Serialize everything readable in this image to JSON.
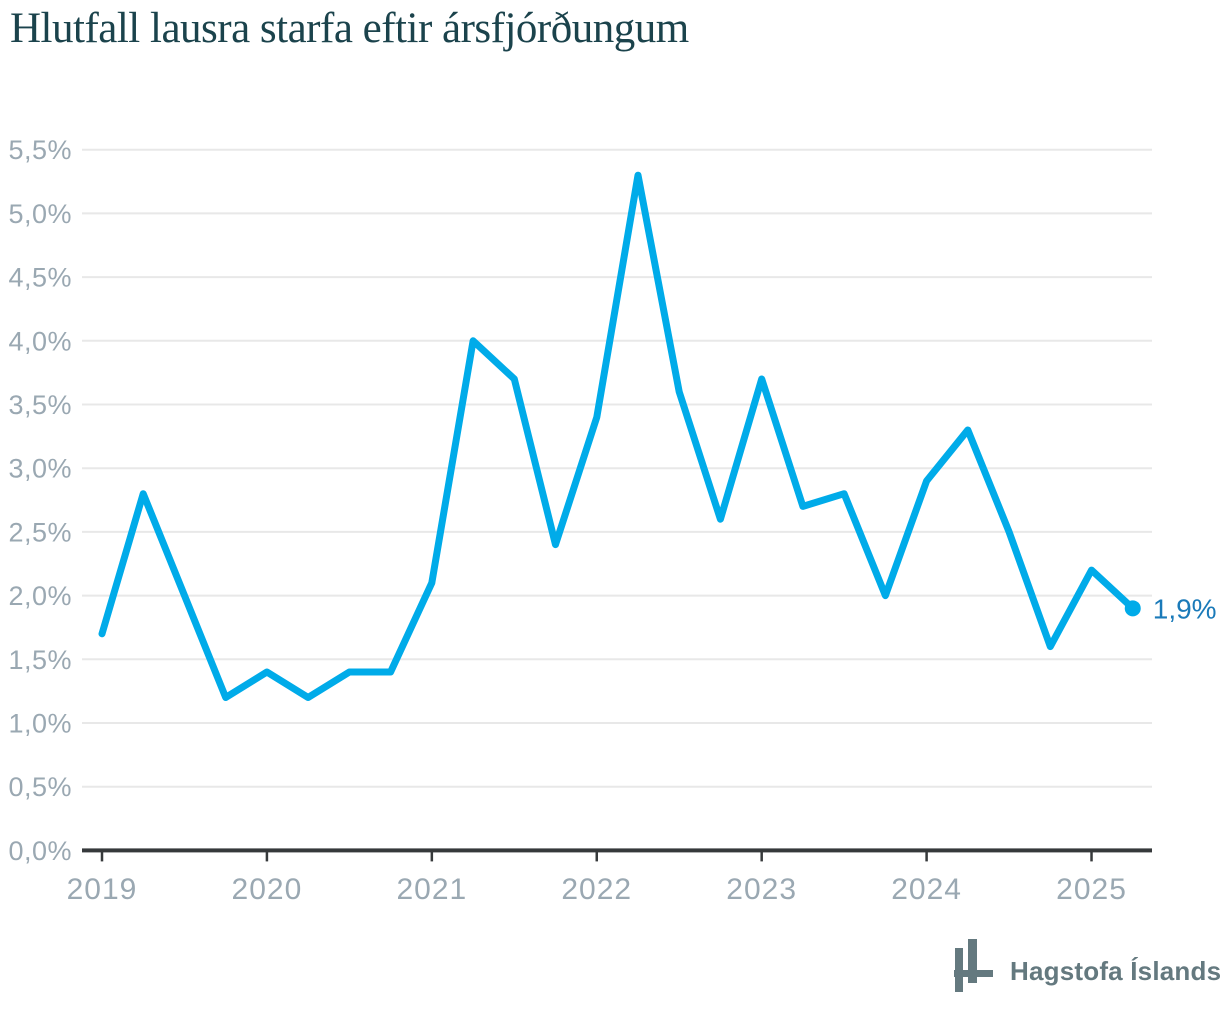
{
  "page": {
    "title": "Hlutfall lausra starfa eftir ársfjórðungum"
  },
  "footer": {
    "brand": "Hagstofa Íslands"
  },
  "colors": {
    "line": "#00abe9",
    "end_dot": "#00abe9",
    "end_label": "#1a7ab9",
    "title": "#1b434c",
    "tick_label": "#9aa8b2",
    "gridline": "#e8e8e8",
    "axis": "#36393b",
    "logo": "#64797f"
  },
  "chart_data": {
    "type": "line",
    "title": "Hlutfall lausra starfa eftir ársfjórðungum",
    "xlabel": "",
    "ylabel": "",
    "x_unit": "quarter",
    "x": [
      "2019Q1",
      "2019Q2",
      "2019Q3",
      "2019Q4",
      "2020Q1",
      "2020Q2",
      "2020Q3",
      "2020Q4",
      "2021Q1",
      "2021Q2",
      "2021Q3",
      "2021Q4",
      "2022Q1",
      "2022Q2",
      "2022Q3",
      "2022Q4",
      "2023Q1",
      "2023Q2",
      "2023Q3",
      "2023Q4",
      "2024Q1",
      "2024Q2",
      "2024Q3",
      "2024Q4",
      "2025Q1",
      "2025Q2"
    ],
    "values": [
      1.7,
      2.8,
      2.0,
      1.2,
      1.4,
      1.2,
      1.4,
      1.4,
      2.1,
      4.0,
      3.7,
      2.4,
      3.4,
      5.3,
      3.6,
      2.6,
      3.7,
      2.7,
      2.8,
      2.0,
      2.9,
      3.3,
      2.5,
      1.6,
      2.2,
      1.9
    ],
    "ylim": [
      0.0,
      5.5
    ],
    "ytick_step": 0.5,
    "yticks": [
      0.0,
      0.5,
      1.0,
      1.5,
      2.0,
      2.5,
      3.0,
      3.5,
      4.0,
      4.5,
      5.0,
      5.5
    ],
    "ytick_labels": [
      "0,0%",
      "0,5%",
      "1,0%",
      "1,5%",
      "2,0%",
      "2,5%",
      "3,0%",
      "3,5%",
      "4,0%",
      "4,5%",
      "5,0%",
      "5,5%"
    ],
    "xtick_labels": [
      "2019",
      "2020",
      "2021",
      "2022",
      "2023",
      "2024",
      "2025"
    ],
    "xtick_quarter_index": [
      0,
      4,
      8,
      12,
      16,
      20,
      24
    ],
    "grid": "horizontal",
    "legend": "none",
    "end_label": "1,9%",
    "last_value": 1.9
  }
}
